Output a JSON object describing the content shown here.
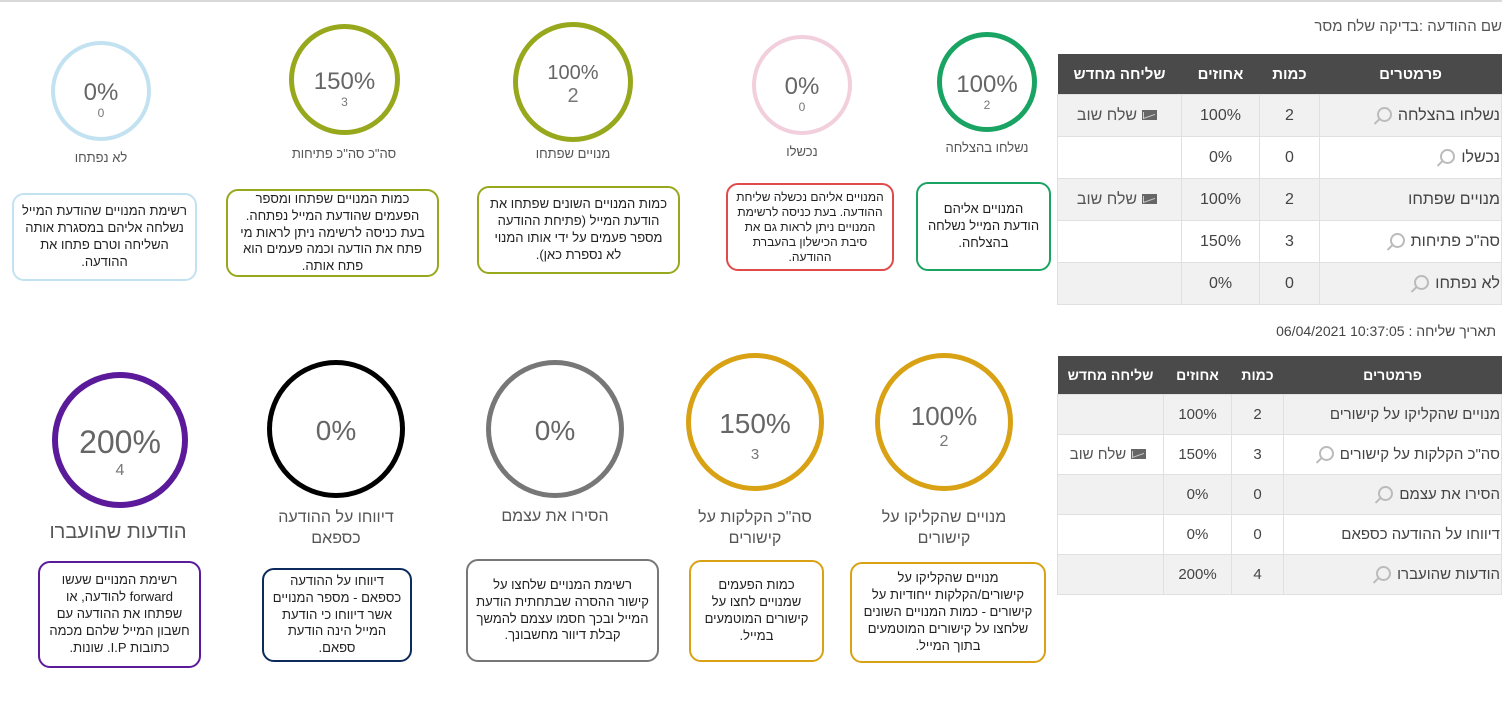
{
  "message_name": "שם ההודעה :בדיקה שלח מסר",
  "send_date": "תאריך שליחה : 10:37:05 06/04/2021",
  "table1": {
    "headers": [
      "פרמטרים",
      "כמות",
      "אחוזים",
      "שליחה מחדש"
    ],
    "rows": [
      {
        "param": "נשלחו בהצלחה",
        "count": "2",
        "percent": "100%",
        "resend": "שלח שוב"
      },
      {
        "param": "נכשלו",
        "count": "0",
        "percent": "0%",
        "resend": ""
      },
      {
        "param": "מנויים שפתחו",
        "count": "2",
        "percent": "100%",
        "resend": "שלח שוב"
      },
      {
        "param": "סה\"כ פתיחות",
        "count": "3",
        "percent": "150%",
        "resend": ""
      },
      {
        "param": "לא נפתחו",
        "count": "0",
        "percent": "0%",
        "resend": ""
      }
    ]
  },
  "table2": {
    "headers": [
      "פרמטרים",
      "כמות",
      "אחוזים",
      "שליחה מחדש"
    ],
    "rows": [
      {
        "param": "מנויים שהקליקו על קישורים",
        "count": "2",
        "percent": "100%",
        "resend": ""
      },
      {
        "param": "סה\"כ הקלקות על קישורים",
        "count": "3",
        "percent": "150%",
        "resend": "שלח שוב"
      },
      {
        "param": "הסירו את עצמם",
        "count": "0",
        "percent": "0%",
        "resend": ""
      },
      {
        "param": "דיווחו על ההודעה כספאם",
        "count": "0",
        "percent": "0%",
        "resend": ""
      },
      {
        "param": "הודעות שהועברו",
        "count": "4",
        "percent": "200%",
        "resend": ""
      }
    ]
  },
  "stats_top": [
    {
      "percent": "100%",
      "count": "2",
      "label": "נשלחו בהצלחה",
      "color": "#19a463",
      "desc": "המנויים אליהם הודעת המייל נשלחה בהצלחה."
    },
    {
      "percent": "0%",
      "count": "0",
      "label": "נכשלו",
      "color": "#f2cfdc",
      "desc": "המנויים אליהם נכשלה שליחת ההודעה. בעת כניסה לרשימת המנויים ניתן לראות גם את סיבת הכישלון בהעברת ההודעה.",
      "desc_border": "#e04a4a"
    },
    {
      "percent": "100%",
      "count": "2",
      "label": "מנויים שפתחו",
      "color": "#98a81d",
      "desc": "כמות המנויים השונים שפתחו את הודעת המייל (פתיחת ההודעה מספר פעמים על ידי אותו המנוי לא נספרת כאן)."
    },
    {
      "percent": "150%",
      "count": "3",
      "label": "סה\"כ סה\"כ פתיחות",
      "color": "#98a81d",
      "desc": "כמות המנויים שפתחו ומספר הפעמים שהודעת המייל נפתחה. בעת כניסה לרשימה ניתן לראות מי פתח את הודעה וכמה פעמים הוא פתח אותה."
    },
    {
      "percent": "0%",
      "count": "0",
      "label": "לא נפתחו",
      "color": "#c3e2f1",
      "desc": "רשימת המנויים שהודעת המייל נשלחה אליהם במסגרת אותה השליחה וטרם פתחו את ההודעה."
    }
  ],
  "stats_bottom": [
    {
      "percent": "100%",
      "count": "2",
      "label": "מנויים שהקליקו על קישורים",
      "color": "#d9a214",
      "desc": "מנויים שהקליקו על קישורים/הקלקות ייחודיות על קישורים - כמות המנויים השונים שלחצו על קישורים המוטמעים בתוך המייל."
    },
    {
      "percent": "150%",
      "count": "3",
      "label": "סה\"כ הקלקות על קישורים",
      "color": "#d9a214",
      "desc": "כמות הפעמים שמנויים לחצו על קישורים המוטמעים במייל."
    },
    {
      "percent": "0%",
      "count": "",
      "label": "הסירו את עצמם",
      "color": "#777777",
      "desc": "רשימת המנויים שלחצו על קישור ההסרה שבתחתית הודעת המייל ובכך חסמו עצמם להמשך קבלת דיוור מחשבונך."
    },
    {
      "percent": "0%",
      "count": "",
      "label": "דיווחו על ההודעה כספאם",
      "color": "#000000",
      "desc": "דיווחו על ההודעה כספאם - מספר המנויים אשר דיווחו כי הודעת המייל הינה הודעת ספאם.",
      "desc_border": "#0d2a5c"
    },
    {
      "percent": "200%",
      "count": "4",
      "label": "הודעות שהועברו",
      "color": "#5a1a9a",
      "desc": "רשימת המנויים שעשו forward להודעה, או שפתחו את ההודעה עם חשבון המייל שלהם מכמה כתובות I.P. שונות."
    }
  ]
}
